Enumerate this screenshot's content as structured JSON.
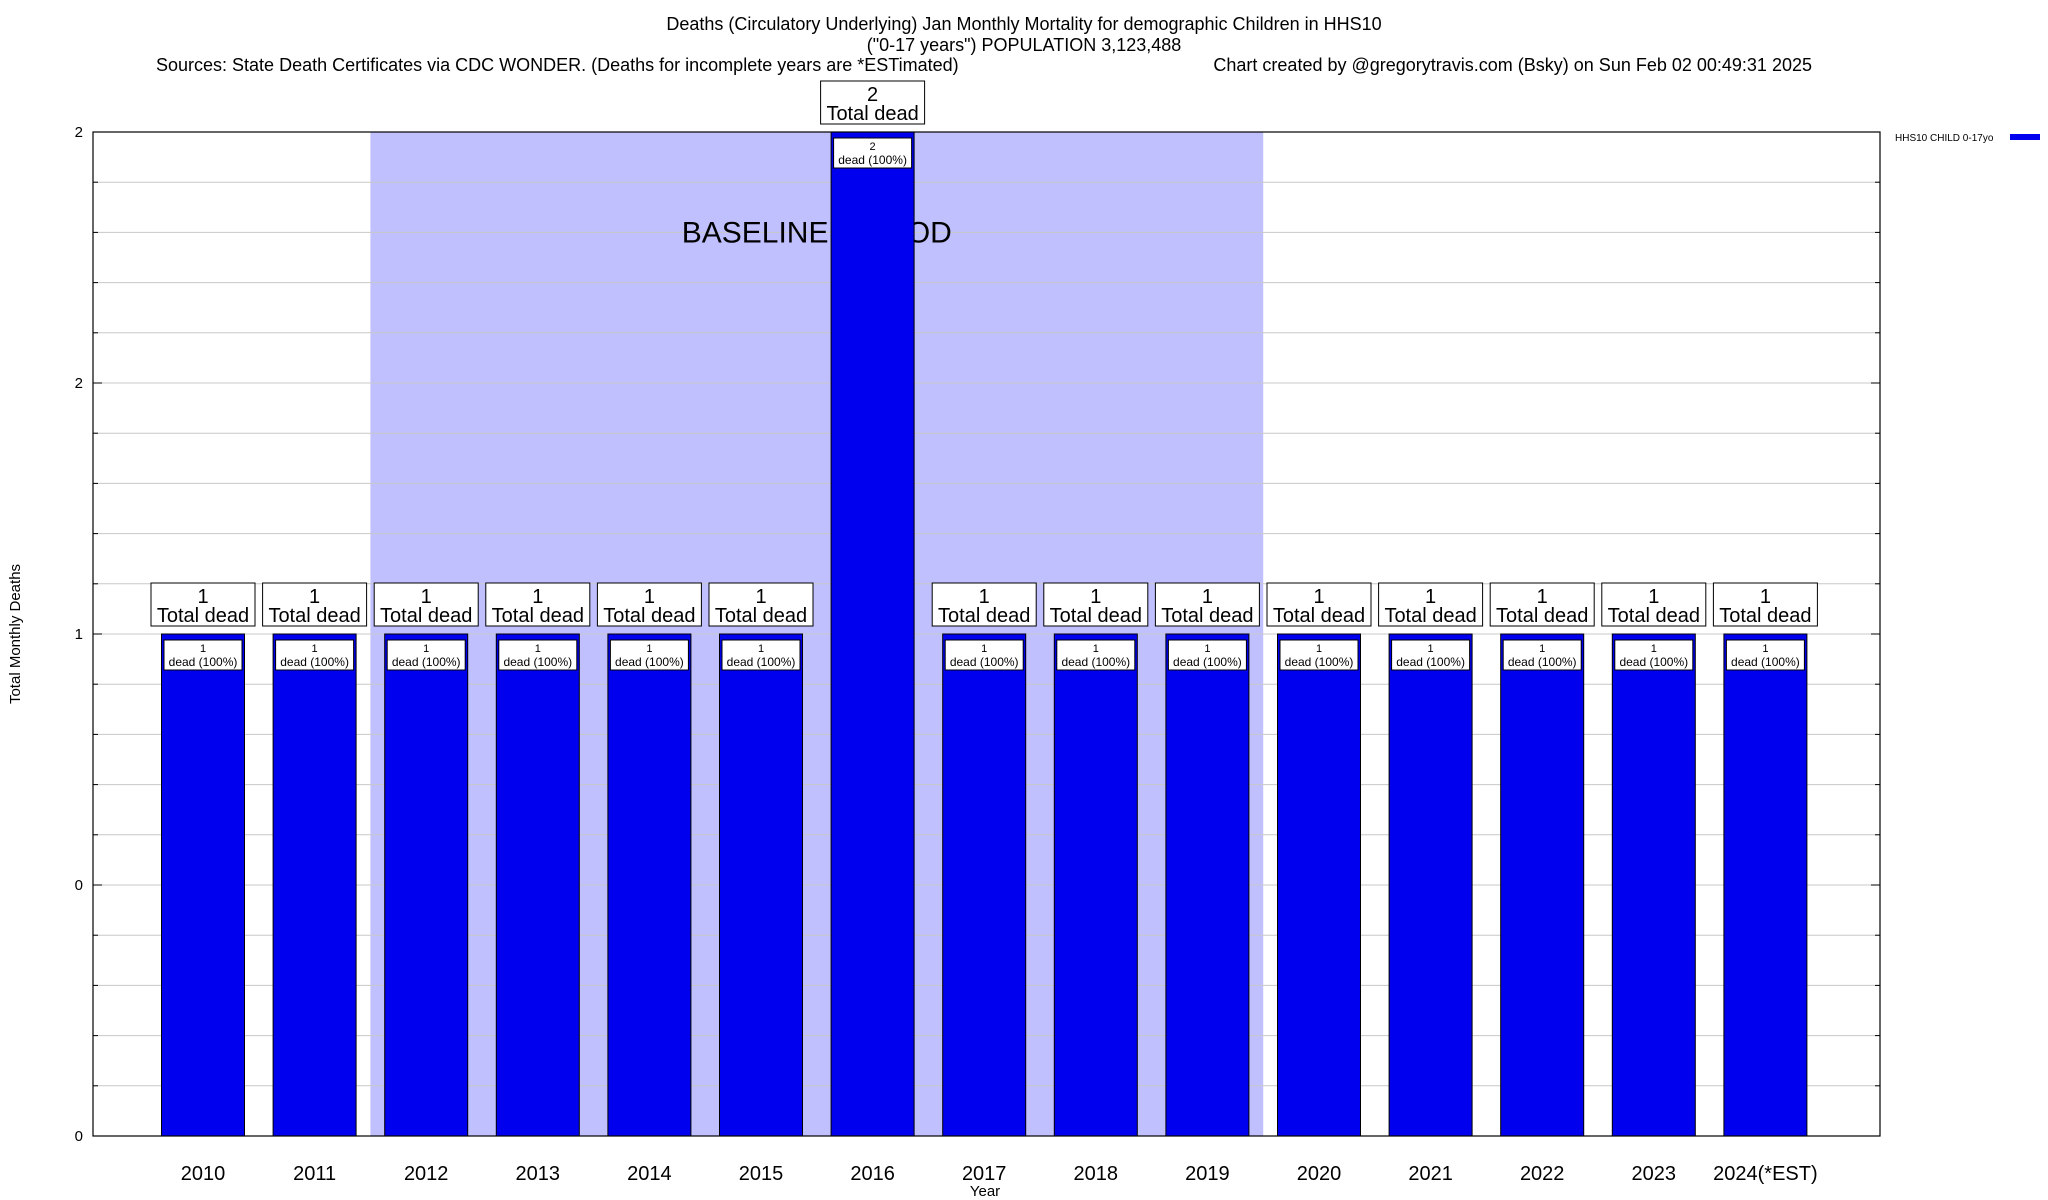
{
  "header": {
    "title_line1": "Deaths (Circulatory Underlying) Jan Monthly Mortality for demographic Children in HHS10",
    "title_line2": "(\"0-17 years\") POPULATION 3,123,488",
    "sources": "Sources: State Death Certificates via CDC WONDER. (Deaths for incomplete years are *ESTimated)",
    "credit": "Chart created by @gregorytravis.com (Bsky) on Sun Feb 02 00:49:31 2025"
  },
  "chart_data": {
    "type": "bar",
    "xlabel": "Year",
    "ylabel": "Total Monthly Deaths",
    "ylim": [
      0,
      2
    ],
    "y_tick_labels": [
      "0",
      "0",
      "1",
      "2",
      "2"
    ],
    "grid": true,
    "legend": {
      "placement": "top-right",
      "entries": [
        "HHS10 CHILD 0-17yo"
      ]
    },
    "categories": [
      "2010",
      "2011",
      "2012",
      "2013",
      "2014",
      "2015",
      "2016",
      "2017",
      "2018",
      "2019",
      "2020",
      "2021",
      "2022",
      "2023",
      "2024(*EST)"
    ],
    "series": [
      {
        "name": "HHS10 CHILD 0-17yo",
        "values": [
          1,
          1,
          1,
          1,
          1,
          1,
          2,
          1,
          1,
          1,
          1,
          1,
          1,
          1,
          1
        ]
      }
    ],
    "total_label_suffix": "Total dead",
    "inner_label_suffix": "dead (100%)",
    "annotation": {
      "text": "BASELINE PERIOD",
      "from_category": "2012",
      "to_category": "2019"
    },
    "colors": {
      "bar": "#0000ee",
      "baseline_band": "#c0c0ff",
      "grid": "#c8c8c8"
    }
  }
}
